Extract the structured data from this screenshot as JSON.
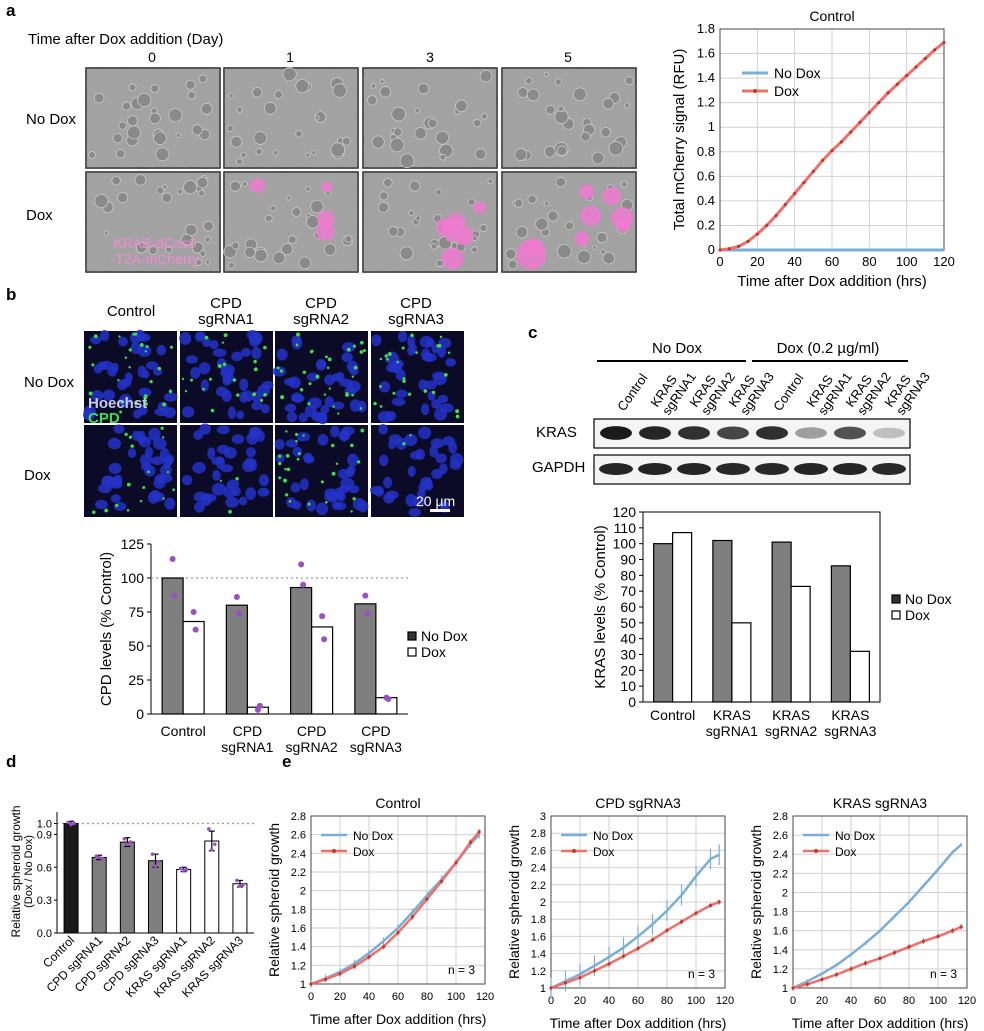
{
  "panel_labels": [
    "a",
    "b",
    "c",
    "d",
    "e"
  ],
  "panel_a": {
    "time_header": "Time after Dox addition (Day)",
    "days": [
      "0",
      "1",
      "3",
      "5"
    ],
    "rows": [
      "No Dox",
      "Dox"
    ],
    "overlay": [
      "KRAB-dCas9",
      "-T2A-mCherry"
    ],
    "colors": {
      "micrograph": "#9a9a9a",
      "mcherry": "#f07ad0",
      "overlay_text": "#f28ad8"
    }
  },
  "panel_b": {
    "columns": [
      "Control",
      "CPD\nsgRNA1",
      "CPD\nsgRNA2",
      "CPD\nsgRNA3"
    ],
    "rows": [
      "No Dox",
      "Dox"
    ],
    "stain_labels": [
      "Hoechst",
      "CPD"
    ],
    "scale_bar": "20 µm",
    "colors": {
      "nuclei": "#2433c8",
      "background": "#0b0b28",
      "cpd": "#3ee04a",
      "hoechst_text": "#c8ccf0"
    }
  },
  "panel_c": {
    "groups": [
      "No Dox",
      "Dox (0.2 µg/ml)"
    ],
    "lanes": [
      "Control",
      "KRAS\nsgRNA1",
      "KRAS\nsgRNA2",
      "KRAS\nsgRNA3",
      "Control",
      "KRAS\nsgRNA1",
      "KRAS\nsgRNA2",
      "KRAS\nsgRNA3"
    ],
    "blots": [
      "KRAS",
      "GAPDH"
    ],
    "kras_band_intensity": [
      0.95,
      0.9,
      0.85,
      0.75,
      0.85,
      0.35,
      0.7,
      0.2
    ],
    "gapdh_band_intensity": [
      0.9,
      0.9,
      0.9,
      0.88,
      0.88,
      0.9,
      0.9,
      0.88
    ]
  },
  "chart_data": [
    {
      "id": "a",
      "type": "line",
      "title": "Control",
      "xlabel": "Time after Dox addition (hrs)",
      "ylabel": "Total mCherry signal (RFU)",
      "xlim": [
        0,
        120
      ],
      "ylim": [
        0,
        1.8
      ],
      "xticks": [
        0,
        20,
        40,
        60,
        80,
        100,
        120
      ],
      "yticks": [
        0,
        0.2,
        0.4,
        0.6,
        0.8,
        1,
        1.2,
        1.4,
        1.6,
        1.8
      ],
      "ytick_labels": [
        "0",
        "0.2",
        "0.4",
        "0.6",
        "0.8",
        "1",
        "1.2",
        "1.4",
        "1.6",
        "1.8"
      ],
      "grid": true,
      "legend": "top-left",
      "series": [
        {
          "name": "No Dox",
          "color": "#7aaed6",
          "x": [
            0,
            10,
            20,
            30,
            40,
            50,
            60,
            70,
            80,
            90,
            100,
            110,
            120
          ],
          "y": [
            0,
            0,
            0,
            0,
            0,
            0,
            0,
            0,
            0,
            0,
            0,
            0,
            0
          ]
        },
        {
          "name": "Dox",
          "color": "#ef6f6a",
          "x": [
            0,
            5,
            10,
            15,
            20,
            25,
            30,
            35,
            40,
            45,
            50,
            55,
            60,
            65,
            70,
            75,
            80,
            85,
            90,
            95,
            100,
            105,
            110,
            115,
            120
          ],
          "y": [
            0,
            0.01,
            0.03,
            0.07,
            0.13,
            0.2,
            0.28,
            0.37,
            0.46,
            0.55,
            0.64,
            0.73,
            0.81,
            0.88,
            0.96,
            1.04,
            1.12,
            1.2,
            1.28,
            1.35,
            1.42,
            1.49,
            1.56,
            1.63,
            1.69
          ]
        }
      ]
    },
    {
      "id": "b",
      "type": "bar",
      "categories": [
        "Control",
        "CPD\nsgRNA1",
        "CPD\nsgRNA2",
        "CPD\nsgRNA3"
      ],
      "ylabel": "CPD levels (% Control)",
      "ylim": [
        0,
        125
      ],
      "yticks": [
        0,
        25,
        50,
        75,
        100,
        125
      ],
      "reference_line": 100,
      "legend": "right",
      "series": [
        {
          "name": "No Dox",
          "color": "#7f7f7f",
          "values": [
            100,
            80,
            93,
            81
          ]
        },
        {
          "name": "Dox",
          "color": "#ffffff",
          "values": [
            68,
            5,
            64,
            12
          ]
        }
      ],
      "points": [
        {
          "name": "No Dox",
          "values": [
            [
              114,
              87
            ],
            [
              86,
              74
            ],
            [
              110,
              95
            ],
            [
              87,
              74
            ]
          ]
        },
        {
          "name": "Dox",
          "values": [
            [
              75,
              62
            ],
            [
              3,
              6
            ],
            [
              72,
              55
            ],
            [
              12,
              11
            ]
          ]
        }
      ],
      "point_color": "#9b4fc4"
    },
    {
      "id": "c",
      "type": "bar",
      "categories": [
        "Control",
        "KRAS\nsgRNA1",
        "KRAS\nsgRNA2",
        "KRAS\nsgRNA3"
      ],
      "ylabel": "KRAS levels (% Control)",
      "ylim": [
        0,
        120
      ],
      "yticks": [
        0,
        10,
        20,
        30,
        40,
        50,
        60,
        70,
        80,
        90,
        100,
        110,
        120
      ],
      "legend": "right",
      "series": [
        {
          "name": "No Dox",
          "color": "#7f7f7f",
          "values": [
            100,
            102,
            101,
            86
          ]
        },
        {
          "name": "Dox",
          "color": "#ffffff",
          "values": [
            107,
            50,
            73,
            32
          ]
        }
      ]
    },
    {
      "id": "d",
      "type": "bar",
      "categories": [
        "Control",
        "CPD sgRNA1",
        "CPD sgRNA2",
        "CPD sgRNA3",
        "KRAS sgRNA1",
        "KRAS sgRNA2",
        "KRAS sgRNA3"
      ],
      "ylabel": "Relative spheroid growth\n(Dox / No Dox)",
      "ylim": [
        0,
        1.05
      ],
      "yticks": [
        0,
        0.3,
        0.6,
        0.9,
        1.0
      ],
      "ytick_labels": [
        "0.0",
        "0.3",
        "0.6",
        "0.9",
        "1.0"
      ],
      "reference_line": 1.0,
      "values": [
        1.0,
        0.69,
        0.83,
        0.66,
        0.58,
        0.84,
        0.45
      ],
      "errors": [
        0.02,
        0.02,
        0.04,
        0.06,
        0.02,
        0.09,
        0.03
      ],
      "colors": [
        "#1a1a1a",
        "#7f7f7f",
        "#7f7f7f",
        "#7f7f7f",
        "#ffffff",
        "#ffffff",
        "#ffffff"
      ],
      "points": [
        [
          1.01,
          0.99,
          1.0
        ],
        [
          0.7,
          0.69,
          0.68
        ],
        [
          0.86,
          0.81,
          0.83
        ],
        [
          0.72,
          0.61,
          0.65
        ],
        [
          0.59,
          0.57,
          0.58
        ],
        [
          0.95,
          0.76,
          0.81
        ],
        [
          0.48,
          0.43,
          0.44
        ]
      ],
      "point_color": "#9b4fc4"
    },
    {
      "id": "e1",
      "type": "line",
      "title": "Control",
      "xlabel": "Time after Dox addition (hrs)",
      "ylabel": "Relative spheroid growth",
      "xlim": [
        0,
        120
      ],
      "ylim": [
        1,
        2.8
      ],
      "xticks": [
        0,
        20,
        40,
        60,
        80,
        100,
        120
      ],
      "yticks": [
        1,
        1.2,
        1.4,
        1.6,
        1.8,
        2,
        2.2,
        2.4,
        2.6,
        2.8
      ],
      "ytick_labels": [
        "1",
        "1.2",
        "1.4",
        "1.6",
        "1.8",
        "2",
        "2.2",
        "2.4",
        "2.6",
        "2.8"
      ],
      "annotation": "n = 3",
      "grid": true,
      "legend": "top-left",
      "series": [
        {
          "name": "No Dox",
          "color": "#7aaed6",
          "x": [
            0,
            10,
            20,
            30,
            40,
            50,
            60,
            70,
            80,
            90,
            100,
            110,
            116
          ],
          "y": [
            1.0,
            1.06,
            1.13,
            1.22,
            1.33,
            1.46,
            1.6,
            1.77,
            1.95,
            2.12,
            2.3,
            2.5,
            2.6
          ],
          "err": 0.04
        },
        {
          "name": "Dox",
          "color": "#ef6f6a",
          "x": [
            0,
            10,
            20,
            30,
            40,
            50,
            60,
            70,
            80,
            90,
            100,
            110,
            116
          ],
          "y": [
            1.0,
            1.05,
            1.11,
            1.19,
            1.29,
            1.4,
            1.55,
            1.72,
            1.91,
            2.1,
            2.3,
            2.52,
            2.63
          ],
          "err": 0.03
        }
      ]
    },
    {
      "id": "e2",
      "type": "line",
      "title": "CPD sgRNA3",
      "xlabel": "Time after Dox addition (hrs)",
      "ylabel": "Relative spheroid growth",
      "xlim": [
        0,
        120
      ],
      "ylim": [
        1,
        3
      ],
      "xticks": [
        0,
        20,
        40,
        60,
        80,
        100,
        120
      ],
      "yticks": [
        1,
        1.2,
        1.4,
        1.6,
        1.8,
        2,
        2.2,
        2.4,
        2.6,
        2.8,
        3
      ],
      "ytick_labels": [
        "1",
        "1.2",
        "1.4",
        "1.6",
        "1.8",
        "2",
        "2.2",
        "2.4",
        "2.6",
        "2.8",
        "3"
      ],
      "annotation": "n = 3",
      "grid": true,
      "legend": "top-left",
      "series": [
        {
          "name": "No Dox",
          "color": "#7aaed6",
          "x": [
            0,
            10,
            20,
            30,
            40,
            50,
            60,
            70,
            80,
            90,
            100,
            110,
            116
          ],
          "y": [
            1.0,
            1.08,
            1.16,
            1.26,
            1.36,
            1.47,
            1.6,
            1.74,
            1.9,
            2.08,
            2.3,
            2.5,
            2.55
          ],
          "err": 0.12
        },
        {
          "name": "Dox",
          "color": "#ef6f6a",
          "x": [
            0,
            10,
            20,
            30,
            40,
            50,
            60,
            70,
            80,
            90,
            100,
            110,
            116
          ],
          "y": [
            1.0,
            1.06,
            1.12,
            1.2,
            1.28,
            1.37,
            1.46,
            1.56,
            1.67,
            1.77,
            1.87,
            1.96,
            2.0
          ],
          "err": 0.03
        }
      ]
    },
    {
      "id": "e3",
      "type": "line",
      "title": "KRAS sgRNA3",
      "xlabel": "Time after Dox addition (hrs)",
      "ylabel": "Relative spheroid growth",
      "xlim": [
        0,
        120
      ],
      "ylim": [
        1,
        2.8
      ],
      "xticks": [
        0,
        20,
        40,
        60,
        80,
        100,
        120
      ],
      "yticks": [
        1,
        1.2,
        1.4,
        1.6,
        1.8,
        2,
        2.2,
        2.4,
        2.6,
        2.8
      ],
      "ytick_labels": [
        "1",
        "1.2",
        "1.4",
        "1.6",
        "1.8",
        "2",
        "2.2",
        "2.4",
        "2.6",
        "2.8"
      ],
      "annotation": "n = 3",
      "grid": true,
      "legend": "top-left",
      "series": [
        {
          "name": "No Dox",
          "color": "#7aaed6",
          "x": [
            0,
            10,
            20,
            30,
            40,
            50,
            60,
            70,
            80,
            90,
            100,
            110,
            116
          ],
          "y": [
            1.0,
            1.07,
            1.15,
            1.24,
            1.35,
            1.47,
            1.6,
            1.75,
            1.9,
            2.07,
            2.24,
            2.42,
            2.5
          ],
          "err": 0.02
        },
        {
          "name": "Dox",
          "color": "#ef6f6a",
          "x": [
            0,
            10,
            20,
            30,
            40,
            50,
            60,
            70,
            80,
            90,
            100,
            110,
            116
          ],
          "y": [
            1.0,
            1.04,
            1.09,
            1.14,
            1.2,
            1.26,
            1.31,
            1.37,
            1.43,
            1.49,
            1.54,
            1.6,
            1.64
          ],
          "err": 0.03
        }
      ]
    }
  ]
}
